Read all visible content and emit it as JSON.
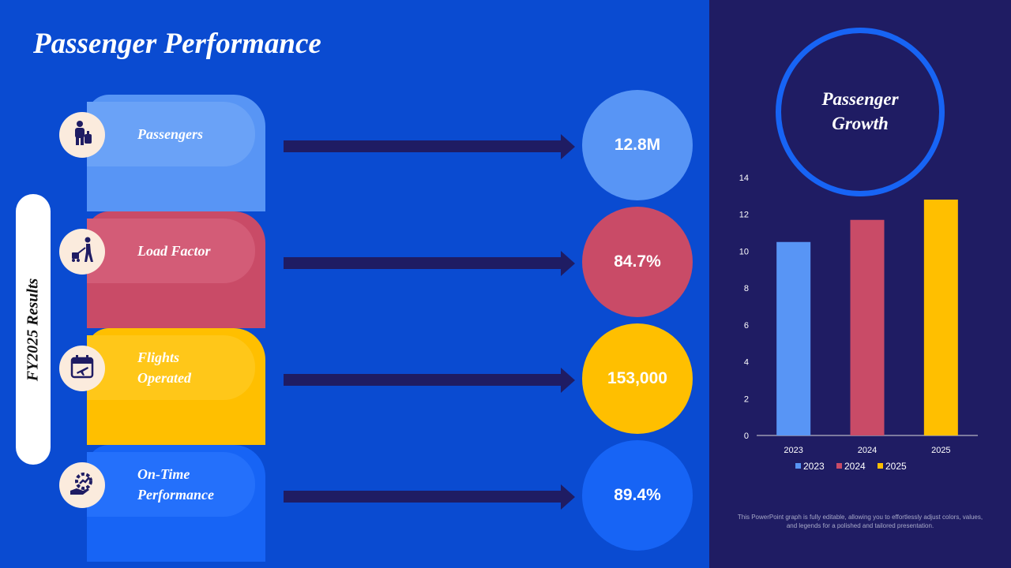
{
  "title": "Passenger Performance",
  "side_label": "FY2025 Results",
  "metrics": [
    {
      "label": "Passengers",
      "value": "12.8M",
      "icon": "luggage-person-icon",
      "tab_color": "#5895F5",
      "inner_color": "#6AA2F7",
      "circle_color": "#5895F5"
    },
    {
      "label": "Load Factor",
      "value": "84.7%",
      "icon": "cart-person-icon",
      "tab_color": "#C94B67",
      "inner_color": "#D35C77",
      "circle_color": "#C94B67"
    },
    {
      "label": "Flights\nOperated",
      "value": "153,000",
      "icon": "flight-calendar-icon",
      "tab_color": "#FFBF00",
      "inner_color": "#FFC719",
      "circle_color": "#FFBF00"
    },
    {
      "label": "On-Time\nPerformance",
      "value": "89.4%",
      "icon": "performance-gear-icon",
      "tab_color": "#1764F5",
      "inner_color": "#2470FB",
      "circle_color": "#1764F5"
    }
  ],
  "chart_heading": "Passenger\nGrowth",
  "footnote": "This PowerPoint graph is fully editable, allowing you to effortlessly adjust colors, values, and legends for a polished and tailored presentation.",
  "colors": {
    "bg_left": "#0A4BD1",
    "bg_right": "#1F1C63",
    "arrow": "#1F1C63"
  },
  "chart_data": {
    "type": "bar",
    "categories": [
      "2023",
      "2024",
      "2025"
    ],
    "values": [
      10.5,
      11.7,
      12.8
    ],
    "series_colors": [
      "#5895F5",
      "#C94B67",
      "#FFBF00"
    ],
    "legend": [
      "2023",
      "2024",
      "2025"
    ],
    "legend_position": "bottom",
    "title": "",
    "xlabel": "",
    "ylabel": "",
    "ylim": [
      0,
      14
    ],
    "yticks": [
      0,
      2,
      4,
      6,
      8,
      10,
      12,
      14
    ],
    "grid": false
  }
}
